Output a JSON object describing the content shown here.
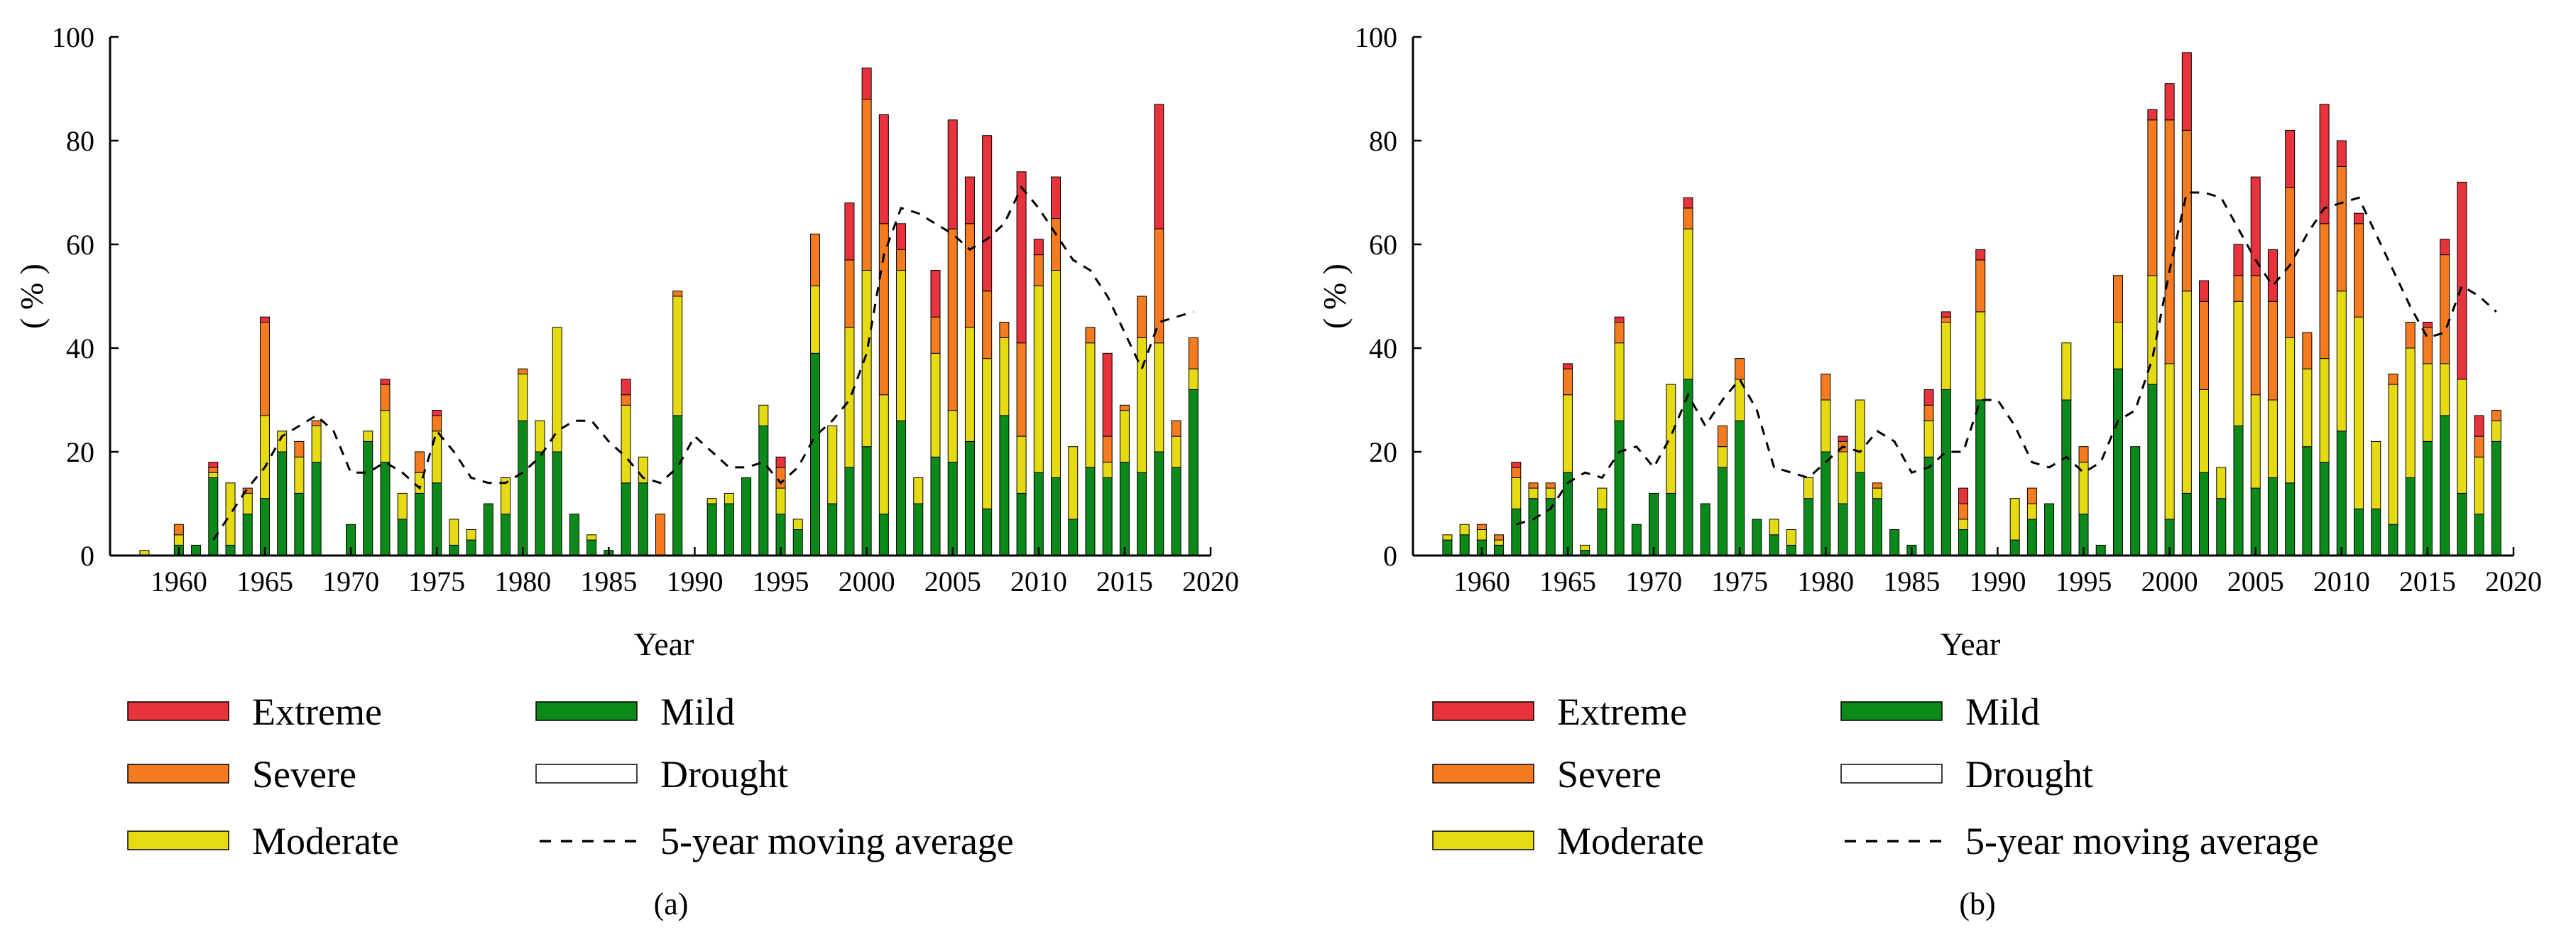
{
  "colors": {
    "extreme": "#e8323c",
    "severe": "#f47b20",
    "moderate": "#e6db12",
    "mild": "#0c8a19",
    "drought": "#ffffff",
    "axis": "#000000"
  },
  "legend": {
    "extreme": "Extreme",
    "severe": "Severe",
    "moderate": "Moderate",
    "mild": "Mild",
    "drought": "Drought",
    "moving_average": "5-year moving average"
  },
  "chart_data": [
    {
      "type": "bar",
      "stacked": true,
      "panel_label": "(a)",
      "xlabel": "Year",
      "ylabel": "( % )",
      "xlim": [
        1956,
        2020
      ],
      "ylim": [
        0,
        100
      ],
      "xticks": [
        1960,
        1965,
        1970,
        1975,
        1980,
        1985,
        1990,
        1995,
        2000,
        2005,
        2010,
        2015,
        2020
      ],
      "yticks": [
        0,
        20,
        40,
        60,
        80,
        100
      ],
      "years": [
        1958,
        1959,
        1960,
        1961,
        1962,
        1963,
        1964,
        1965,
        1966,
        1967,
        1968,
        1969,
        1970,
        1971,
        1972,
        1973,
        1974,
        1975,
        1976,
        1977,
        1978,
        1979,
        1980,
        1981,
        1982,
        1983,
        1984,
        1985,
        1986,
        1987,
        1988,
        1989,
        1990,
        1991,
        1992,
        1993,
        1994,
        1995,
        1996,
        1997,
        1998,
        1999,
        2000,
        2001,
        2002,
        2003,
        2004,
        2005,
        2006,
        2007,
        2008,
        2009,
        2010,
        2011,
        2012,
        2013,
        2014,
        2015,
        2016,
        2017,
        2018,
        2019
      ],
      "series": [
        {
          "name": "Mild",
          "values": [
            0,
            0,
            2,
            2,
            15,
            2,
            8,
            11,
            20,
            12,
            18,
            0,
            6,
            22,
            18,
            7,
            12,
            14,
            2,
            3,
            10,
            8,
            26,
            20,
            20,
            8,
            3,
            1,
            14,
            14,
            0,
            27,
            0,
            10,
            10,
            15,
            25,
            8,
            5,
            39,
            10,
            17,
            21,
            8,
            26,
            10,
            19,
            18,
            22,
            9,
            27,
            12,
            16,
            15,
            7,
            17,
            15,
            18,
            16,
            20,
            17,
            32
          ]
        },
        {
          "name": "Moderate",
          "values": [
            1,
            0,
            2,
            0,
            1,
            12,
            4,
            16,
            4,
            7,
            7,
            0,
            0,
            2,
            10,
            5,
            4,
            10,
            5,
            2,
            0,
            7,
            9,
            6,
            24,
            0,
            1,
            0,
            15,
            5,
            0,
            23,
            0,
            1,
            2,
            0,
            4,
            5,
            2,
            13,
            15,
            27,
            34,
            23,
            29,
            5,
            20,
            10,
            22,
            29,
            15,
            11,
            36,
            40,
            14,
            24,
            3,
            10,
            26,
            21,
            6,
            4
          ]
        },
        {
          "name": "Severe",
          "values": [
            0,
            0,
            2,
            0,
            1,
            0,
            1,
            18,
            0,
            3,
            1,
            0,
            0,
            0,
            5,
            0,
            4,
            3,
            0,
            0,
            0,
            0,
            1,
            0,
            0,
            0,
            0,
            0,
            2,
            0,
            8,
            1,
            0,
            0,
            0,
            0,
            0,
            4,
            0,
            10,
            0,
            13,
            33,
            33,
            4,
            0,
            7,
            35,
            20,
            13,
            3,
            18,
            6,
            10,
            0,
            3,
            5,
            1,
            8,
            22,
            3,
            6
          ]
        },
        {
          "name": "Extreme",
          "values": [
            0,
            0,
            0,
            0,
            1,
            0,
            0,
            1,
            0,
            0,
            0,
            0,
            0,
            0,
            1,
            0,
            0,
            1,
            0,
            0,
            0,
            0,
            0,
            0,
            0,
            0,
            0,
            0,
            3,
            0,
            0,
            0,
            0,
            0,
            0,
            0,
            0,
            2,
            0,
            0,
            0,
            11,
            6,
            21,
            5,
            0,
            9,
            21,
            9,
            30,
            0,
            33,
            3,
            8,
            0,
            0,
            16,
            0,
            0,
            24,
            0,
            0
          ]
        }
      ],
      "moving_average": {
        "x": [
          1962,
          1963,
          1964,
          1965,
          1966,
          1967,
          1968,
          1969,
          1970,
          1971,
          1972,
          1973,
          1974,
          1975,
          1976,
          1977,
          1978,
          1979,
          1980,
          1981,
          1982,
          1983,
          1984,
          1985,
          1986,
          1987,
          1988,
          1989,
          1990,
          1991,
          1992,
          1993,
          1994,
          1995,
          1996,
          1997,
          1998,
          1999,
          2000,
          2001,
          2002,
          2003,
          2004,
          2005,
          2006,
          2007,
          2008,
          2009,
          2010,
          2011,
          2012,
          2013,
          2014,
          2015,
          2016,
          2017,
          2018,
          2019
        ],
        "values": [
          3,
          8,
          13,
          17,
          23,
          25,
          27,
          24,
          16,
          16,
          18,
          16,
          13,
          24,
          20,
          15,
          14,
          14,
          16,
          19,
          24,
          26,
          26,
          22,
          19,
          15,
          14,
          17,
          23,
          20,
          17,
          17,
          18,
          14,
          17,
          23,
          26,
          30,
          39,
          58,
          67,
          66,
          64,
          62,
          59,
          61,
          64,
          71,
          67,
          62,
          57,
          55,
          50,
          43,
          36,
          45,
          46,
          47
        ]
      }
    },
    {
      "type": "bar",
      "stacked": true,
      "panel_label": "(b)",
      "xlabel": "Year",
      "ylabel": "( % )",
      "xlim": [
        1956,
        2020
      ],
      "ylim": [
        0,
        100
      ],
      "xticks": [
        1960,
        1965,
        1970,
        1975,
        1980,
        1985,
        1990,
        1995,
        2000,
        2005,
        2010,
        2015,
        2020
      ],
      "yticks": [
        0,
        20,
        40,
        60,
        80,
        100
      ],
      "years": [
        1958,
        1959,
        1960,
        1961,
        1962,
        1963,
        1964,
        1965,
        1966,
        1967,
        1968,
        1969,
        1970,
        1971,
        1972,
        1973,
        1974,
        1975,
        1976,
        1977,
        1978,
        1979,
        1980,
        1981,
        1982,
        1983,
        1984,
        1985,
        1986,
        1987,
        1988,
        1989,
        1990,
        1991,
        1992,
        1993,
        1994,
        1995,
        1996,
        1997,
        1998,
        1999,
        2000,
        2001,
        2002,
        2003,
        2004,
        2005,
        2006,
        2007,
        2008,
        2009,
        2010,
        2011,
        2012,
        2013,
        2014,
        2015,
        2016,
        2017,
        2018,
        2019
      ],
      "series": [
        {
          "name": "Mild",
          "values": [
            3,
            4,
            3,
            2,
            9,
            11,
            11,
            16,
            1,
            9,
            26,
            6,
            12,
            12,
            34,
            10,
            17,
            26,
            7,
            4,
            2,
            11,
            20,
            10,
            16,
            11,
            5,
            2,
            19,
            32,
            5,
            30,
            0,
            3,
            7,
            10,
            30,
            8,
            2,
            36,
            21,
            33,
            7,
            12,
            16,
            11,
            25,
            13,
            15,
            14,
            21,
            18,
            24,
            9,
            9,
            6,
            15,
            22,
            27,
            12,
            8,
            22
          ]
        },
        {
          "name": "Moderate",
          "values": [
            1,
            2,
            2,
            1,
            6,
            2,
            2,
            15,
            1,
            4,
            15,
            0,
            0,
            21,
            29,
            0,
            4,
            8,
            0,
            3,
            3,
            4,
            10,
            10,
            14,
            2,
            0,
            0,
            7,
            13,
            2,
            17,
            0,
            8,
            3,
            0,
            11,
            10,
            0,
            9,
            0,
            21,
            30,
            39,
            16,
            6,
            24,
            18,
            15,
            28,
            15,
            20,
            27,
            37,
            13,
            27,
            25,
            15,
            10,
            22,
            11,
            4
          ]
        },
        {
          "name": "Severe",
          "values": [
            0,
            0,
            1,
            1,
            2,
            1,
            1,
            5,
            0,
            0,
            4,
            0,
            0,
            0,
            4,
            0,
            4,
            4,
            0,
            0,
            0,
            0,
            5,
            2,
            0,
            1,
            0,
            0,
            3,
            1,
            3,
            10,
            0,
            0,
            3,
            0,
            0,
            3,
            0,
            9,
            0,
            30,
            47,
            31,
            17,
            0,
            5,
            23,
            19,
            29,
            7,
            26,
            24,
            18,
            0,
            2,
            5,
            7,
            21,
            0,
            4,
            2
          ]
        },
        {
          "name": "Extreme",
          "values": [
            0,
            0,
            0,
            0,
            1,
            0,
            0,
            1,
            0,
            0,
            1,
            0,
            0,
            0,
            2,
            0,
            0,
            0,
            0,
            0,
            0,
            0,
            0,
            1,
            0,
            0,
            0,
            0,
            3,
            1,
            3,
            2,
            0,
            0,
            0,
            0,
            0,
            0,
            0,
            0,
            0,
            2,
            7,
            15,
            4,
            0,
            6,
            19,
            10,
            11,
            0,
            23,
            5,
            2,
            0,
            0,
            0,
            1,
            3,
            38,
            4,
            0
          ]
        }
      ],
      "moving_average": {
        "x": [
          1962,
          1963,
          1964,
          1965,
          1966,
          1967,
          1968,
          1969,
          1970,
          1971,
          1972,
          1973,
          1974,
          1975,
          1976,
          1977,
          1978,
          1979,
          1980,
          1981,
          1982,
          1983,
          1984,
          1985,
          1986,
          1987,
          1988,
          1989,
          1990,
          1991,
          1992,
          1993,
          1994,
          1995,
          1996,
          1997,
          1998,
          1999,
          2000,
          2001,
          2002,
          2003,
          2004,
          2005,
          2006,
          2007,
          2008,
          2009,
          2010,
          2011,
          2012,
          2013,
          2014,
          2015,
          2016,
          2017,
          2018,
          2019
        ],
        "values": [
          6,
          7,
          9,
          14,
          16,
          15,
          20,
          21,
          17,
          23,
          31,
          25,
          30,
          34,
          28,
          17,
          16,
          15,
          18,
          21,
          20,
          24,
          22,
          16,
          17,
          20,
          20,
          30,
          30,
          25,
          18,
          17,
          19,
          16,
          18,
          26,
          28,
          38,
          55,
          70,
          70,
          69,
          63,
          57,
          52,
          56,
          62,
          67,
          68,
          69,
          62,
          55,
          48,
          42,
          43,
          52,
          50,
          47
        ]
      }
    }
  ]
}
